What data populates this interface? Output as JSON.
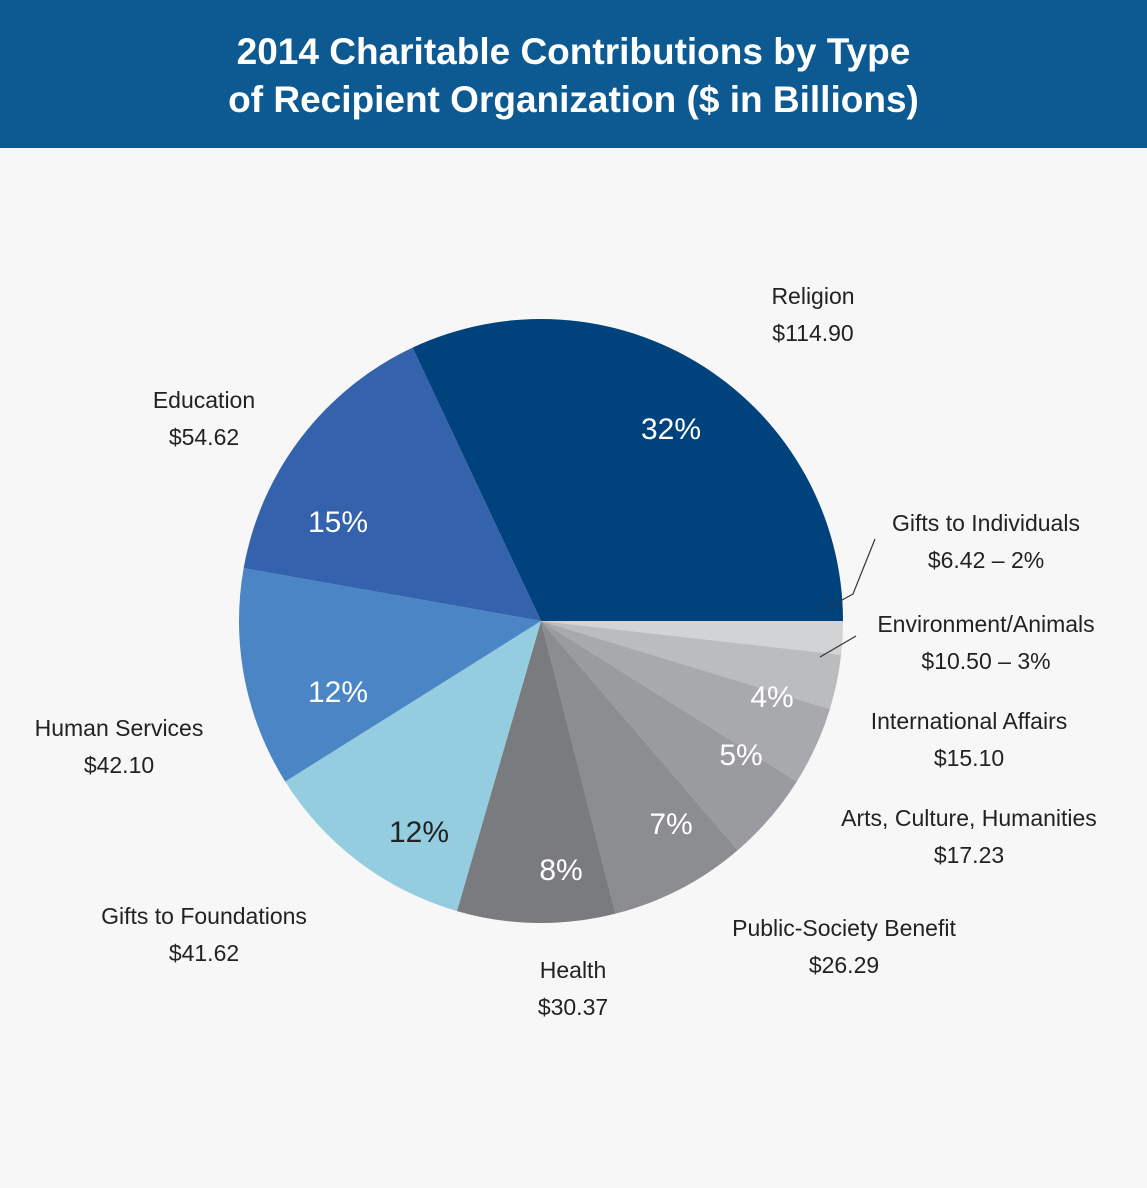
{
  "title": {
    "line1": "2014 Charitable Contributions by Type",
    "line2": "of Recipient Organization ($ in Billions)"
  },
  "colors": {
    "banner": "#0d5a92",
    "background": "#f7f7f7"
  },
  "chart_data": {
    "type": "pie",
    "title": "2014 Charitable Contributions by Type of Recipient Organization ($ in Billions)",
    "slices": [
      {
        "name": "Religion",
        "value": 114.9,
        "label_lines": [
          "Religion",
          "$114.90"
        ],
        "percent_label": "32%",
        "color": "#00427b"
      },
      {
        "name": "Gifts to Individuals",
        "value": 6.42,
        "label_lines": [
          "Gifts to Individuals",
          "$6.42 – 2%"
        ],
        "percent_label": "",
        "color": "#d2d3d4"
      },
      {
        "name": "Environment/Animals",
        "value": 10.5,
        "label_lines": [
          "Environment/Animals",
          "$10.50 – 3%"
        ],
        "percent_label": "",
        "color": "#bbbcbe"
      },
      {
        "name": "International Affairs",
        "value": 15.1,
        "label_lines": [
          "International Affairs",
          "$15.10"
        ],
        "percent_label": "4%",
        "color": "#a8a9ac"
      },
      {
        "name": "Arts, Culture, Humanities",
        "value": 17.23,
        "label_lines": [
          "Arts, Culture, Humanities",
          "$17.23"
        ],
        "percent_label": "5%",
        "color": "#9a9b9e"
      },
      {
        "name": "Public-Society Benefit",
        "value": 26.29,
        "label_lines": [
          "Public-Society Benefit",
          "$26.29"
        ],
        "percent_label": "7%",
        "color": "#8c8d90"
      },
      {
        "name": "Health",
        "value": 30.37,
        "label_lines": [
          "Health",
          "$30.37"
        ],
        "percent_label": "8%",
        "color": "#7a7b7e"
      },
      {
        "name": "Gifts to Foundations",
        "value": 41.62,
        "label_lines": [
          "Gifts to Foundations",
          "$41.62"
        ],
        "percent_label": "12%",
        "color": "#94cde0"
      },
      {
        "name": "Human Services",
        "value": 42.1,
        "label_lines": [
          "Human Services",
          "$42.10"
        ],
        "percent_label": "12%",
        "color": "#4a86c6"
      },
      {
        "name": "Education",
        "value": 54.62,
        "label_lines": [
          "Education",
          "$54.62"
        ],
        "percent_label": "15%",
        "color": "#3462ad"
      }
    ]
  }
}
